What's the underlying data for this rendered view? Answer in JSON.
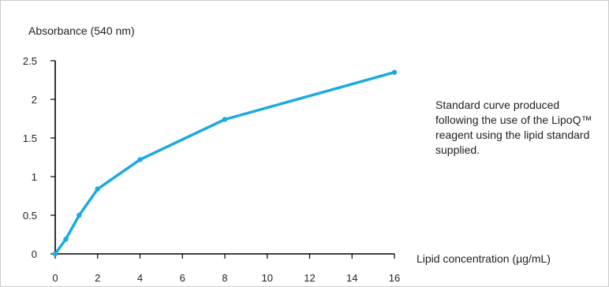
{
  "chart_data": {
    "type": "line",
    "ylabel": "Absorbance (540 nm)",
    "xlabel": "Lipid concentration (µg/mL)",
    "xlim": [
      0,
      16
    ],
    "ylim": [
      0,
      2.5
    ],
    "x_ticks": [
      0,
      2,
      4,
      6,
      8,
      10,
      12,
      14,
      16
    ],
    "x_tick_labels": [
      "0",
      "2",
      "4",
      "6",
      "8",
      "10",
      "12",
      "14",
      "16"
    ],
    "y_ticks": [
      0,
      0.5,
      1,
      1.5,
      2,
      2.5
    ],
    "y_tick_labels": [
      "0",
      "0.5",
      "1",
      "1.5",
      "2",
      "2.5"
    ],
    "grid": false,
    "legend": "none",
    "series": [
      {
        "x": [
          0,
          0.5,
          1.13,
          2,
          4,
          8,
          16
        ],
        "y": [
          0,
          0.19,
          0.5,
          0.84,
          1.22,
          1.74,
          2.35
        ],
        "color": "#1ba9e1"
      }
    ],
    "annotation": "Standard curve produced following the use of the LipoQ™ reagent using the lipid standard supplied."
  }
}
